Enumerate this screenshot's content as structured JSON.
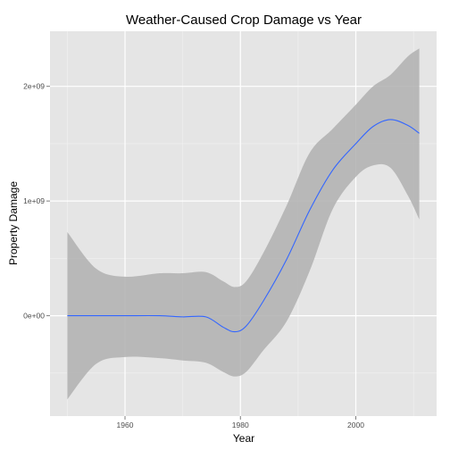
{
  "chart_data": {
    "type": "line",
    "title": "Weather-Caused Crop Damage vs Year",
    "xlabel": "Year",
    "ylabel": "Property Damage",
    "xlim": [
      1947.0,
      2014.0
    ],
    "ylim": [
      -875000000,
      2480000000
    ],
    "x_ticks": [
      {
        "value": 1960,
        "label": "1960"
      },
      {
        "value": 1980,
        "label": "1980"
      },
      {
        "value": 2000,
        "label": "2000"
      }
    ],
    "y_ticks": [
      {
        "value": 0,
        "label": "0e+00"
      },
      {
        "value": 1000000000,
        "label": "1e+09"
      },
      {
        "value": 2000000000,
        "label": "2e+09"
      }
    ],
    "grid": true,
    "legend": "none",
    "colors": {
      "panel_background": "#e5e5e5",
      "grid_major": "#ffffff",
      "grid_minor": "#f2f2f2",
      "confidence_band": "#b0b0b0",
      "line": "#3366ff"
    },
    "series": [
      {
        "x": [
          1950,
          1955,
          1960,
          1966,
          1970,
          1974,
          1977,
          1979,
          1981,
          1984,
          1988,
          1992,
          1996,
          2000,
          2003,
          2006,
          2009,
          2011
        ],
        "y": [
          0,
          0,
          0,
          0,
          -10000000,
          -10000000,
          -100000000,
          -140000000,
          -90000000,
          130000000,
          490000000,
          920000000,
          1270000000,
          1500000000,
          1650000000,
          1710000000,
          1660000000,
          1590000000
        ],
        "ymin": [
          -730000000,
          -420000000,
          -360000000,
          -370000000,
          -390000000,
          -410000000,
          -490000000,
          -530000000,
          -490000000,
          -300000000,
          -50000000,
          390000000,
          930000000,
          1210000000,
          1310000000,
          1290000000,
          1050000000,
          840000000
        ],
        "ymax": [
          730000000,
          410000000,
          340000000,
          370000000,
          370000000,
          380000000,
          300000000,
          250000000,
          300000000,
          550000000,
          960000000,
          1420000000,
          1630000000,
          1840000000,
          2000000000,
          2100000000,
          2260000000,
          2330000000
        ]
      }
    ]
  }
}
